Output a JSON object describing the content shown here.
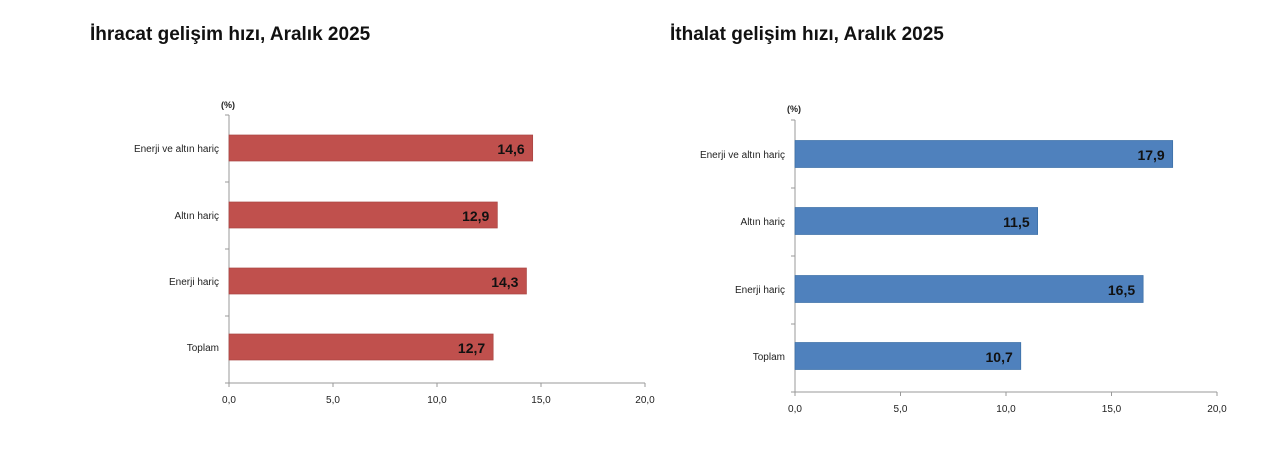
{
  "chart_data": [
    {
      "type": "bar",
      "orientation": "horizontal",
      "title": "İhracat gelişim hızı, Aralık 2025",
      "unit_label": "(%)",
      "categories": [
        "Enerji ve altın hariç",
        "Altın hariç",
        "Enerji hariç",
        "Toplam"
      ],
      "values": [
        14.6,
        12.9,
        14.3,
        12.7
      ],
      "value_labels": [
        "14,6",
        "12,9",
        "14,3",
        "12,7"
      ],
      "xlim": [
        0,
        20
      ],
      "xticks": [
        "0,0",
        "5,0",
        "10,0",
        "15,0",
        "20,0"
      ],
      "color": "#c0504d",
      "grid": false
    },
    {
      "type": "bar",
      "orientation": "horizontal",
      "title": "İthalat gelişim hızı, Aralık 2025",
      "unit_label": "(%)",
      "categories": [
        "Enerji ve altın hariç",
        "Altın hariç",
        "Enerji hariç",
        "Toplam"
      ],
      "values": [
        17.9,
        11.5,
        16.5,
        10.7
      ],
      "value_labels": [
        "17,9",
        "11,5",
        "16,5",
        "10,7"
      ],
      "xlim": [
        0,
        20
      ],
      "xticks": [
        "0,0",
        "5,0",
        "10,0",
        "15,0",
        "20,0"
      ],
      "color": "#4f81bd",
      "grid": false
    }
  ]
}
